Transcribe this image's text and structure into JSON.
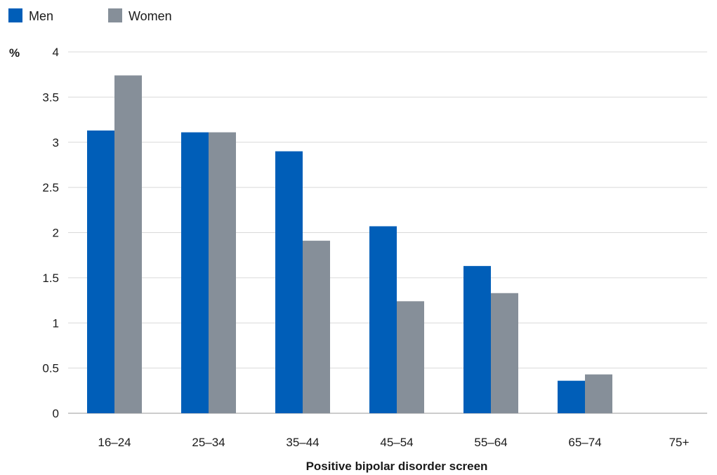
{
  "chart_data": {
    "type": "bar",
    "xlabel": "Positive bipolar disorder screen",
    "ylabel": "%",
    "ylim": [
      0,
      4
    ],
    "yticks": [
      "0",
      "0.5",
      "1",
      "1.5",
      "2",
      "2.5",
      "3",
      "3.5",
      "4"
    ],
    "grid": true,
    "legend_position": "top-left",
    "categories": [
      "16–24",
      "25–34",
      "35–44",
      "45–54",
      "55–64",
      "65–74",
      "75+"
    ],
    "series": [
      {
        "name": "Men",
        "color": "#005EB8",
        "values": [
          3.13,
          3.11,
          2.9,
          2.07,
          1.63,
          0.36,
          0
        ]
      },
      {
        "name": "Women",
        "color": "#868F99",
        "values": [
          3.74,
          3.11,
          1.91,
          1.24,
          1.33,
          0.43,
          0
        ]
      }
    ]
  }
}
